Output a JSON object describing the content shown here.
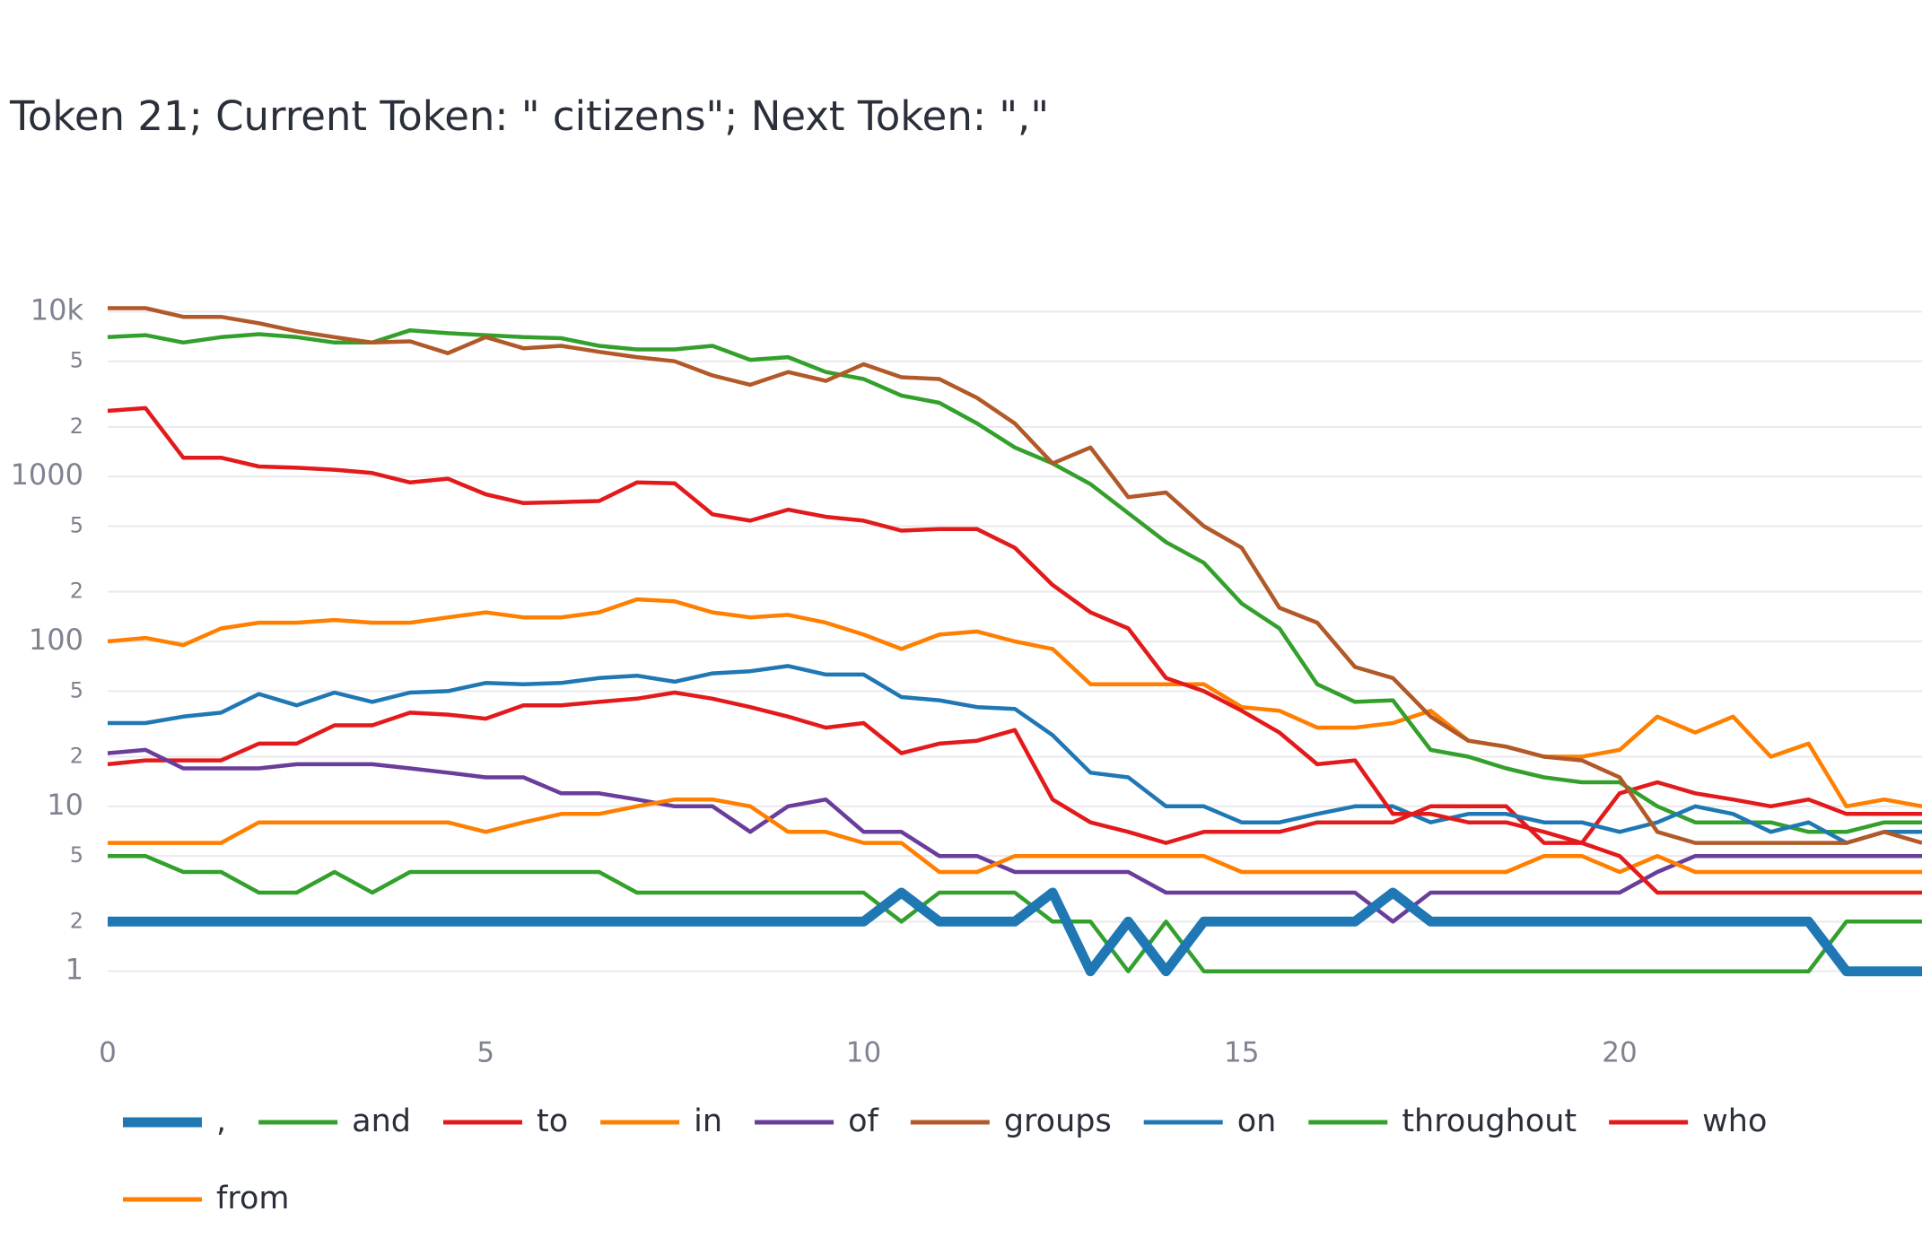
{
  "chart_data": {
    "type": "line",
    "title": "Token 21; Current Token: \" citizens\"; Next Token: \",\"",
    "yscale": "log",
    "grid": true,
    "xlim": [
      0,
      24
    ],
    "xticks": [
      0,
      5,
      10,
      15,
      20
    ],
    "ylim": [
      0.5,
      15000
    ],
    "yticks": [
      1,
      2,
      5,
      10,
      {
        "value": 20,
        "label": "2"
      },
      {
        "value": 50,
        "label": "5"
      },
      100,
      {
        "value": 200,
        "label": "2"
      },
      {
        "value": 500,
        "label": "5"
      },
      1000,
      {
        "value": 2000,
        "label": "2"
      },
      {
        "value": 5000,
        "label": "5"
      },
      {
        "value": 10000,
        "label": "10k"
      }
    ],
    "x": [
      0,
      0.5,
      1,
      1.5,
      2,
      2.5,
      3,
      3.5,
      4,
      4.5,
      5,
      5.5,
      6,
      6.5,
      7,
      7.5,
      8,
      8.5,
      9,
      9.5,
      10,
      10.5,
      11,
      11.5,
      12,
      12.5,
      13,
      13.5,
      14,
      14.5,
      15,
      15.5,
      16,
      16.5,
      17,
      17.5,
      18,
      18.5,
      19,
      19.5,
      20,
      20.5,
      21,
      21.5,
      22,
      22.5,
      23,
      23.5,
      24
    ],
    "series": [
      {
        "name": ",",
        "color": "#1f78b4",
        "values": [
          2,
          2,
          2,
          2,
          2,
          2,
          2,
          2,
          2,
          2,
          2,
          2,
          2,
          2,
          2,
          2,
          2,
          2,
          2,
          2,
          2,
          3,
          2,
          2,
          2,
          3,
          1,
          2,
          1,
          2,
          2,
          2,
          2,
          2,
          3,
          2,
          2,
          2,
          2,
          2,
          2,
          2,
          2,
          2,
          2,
          2,
          1,
          1,
          1
        ]
      },
      {
        "name": "and",
        "color": "#33a02c",
        "values": [
          5,
          5,
          4,
          4,
          3,
          3,
          4,
          3,
          4,
          4,
          4,
          4,
          4,
          4,
          3,
          3,
          3,
          3,
          3,
          3,
          3,
          2,
          3,
          3,
          3,
          2,
          2,
          1,
          2,
          1,
          1,
          1,
          1,
          1,
          1,
          1,
          1,
          1,
          1,
          1,
          1,
          1,
          1,
          1,
          1,
          1,
          2,
          2,
          2
        ]
      },
      {
        "name": "to",
        "color": "#e31a1c",
        "values": [
          2500,
          2600,
          1300,
          1300,
          1150,
          1130,
          1100,
          1050,
          920,
          970,
          780,
          690,
          700,
          710,
          920,
          910,
          590,
          540,
          630,
          570,
          540,
          470,
          480,
          480,
          370,
          220,
          150,
          120,
          60,
          50,
          38,
          28,
          18,
          19,
          9,
          9,
          8,
          8,
          7,
          6,
          5,
          3,
          3,
          3,
          3,
          3,
          3,
          3,
          3
        ]
      },
      {
        "name": "in",
        "color": "#ff7f00",
        "values": [
          6,
          6,
          6,
          6,
          8,
          8,
          8,
          8,
          8,
          8,
          7,
          8,
          9,
          9,
          10,
          11,
          11,
          10,
          7,
          7,
          6,
          6,
          4,
          4,
          5,
          5,
          5,
          5,
          5,
          5,
          4,
          4,
          4,
          4,
          4,
          4,
          4,
          4,
          5,
          5,
          4,
          5,
          4,
          4,
          4,
          4,
          4,
          4,
          4
        ]
      },
      {
        "name": "of",
        "color": "#6a3d9a",
        "values": [
          21,
          22,
          17,
          17,
          17,
          18,
          18,
          18,
          17,
          16,
          15,
          15,
          12,
          12,
          11,
          10,
          10,
          7,
          10,
          11,
          7,
          7,
          5,
          5,
          4,
          4,
          4,
          4,
          3,
          3,
          3,
          3,
          3,
          3,
          2,
          3,
          3,
          3,
          3,
          3,
          3,
          4,
          5,
          5,
          5,
          5,
          5,
          5,
          5
        ]
      },
      {
        "name": "groups",
        "color": "#b15928",
        "values": [
          10500,
          10500,
          9300,
          9300,
          8500,
          7600,
          7000,
          6500,
          6600,
          5600,
          7000,
          6000,
          6200,
          5700,
          5300,
          5000,
          4100,
          3600,
          4300,
          3800,
          4800,
          4000,
          3900,
          3000,
          2100,
          1200,
          1500,
          750,
          800,
          500,
          370,
          160,
          130,
          70,
          60,
          35,
          25,
          23,
          20,
          19,
          15,
          7,
          6,
          6,
          6,
          6,
          6,
          7,
          6
        ]
      },
      {
        "name": "on",
        "color": "#1f78b4",
        "values": [
          32,
          32,
          35,
          37,
          48,
          41,
          49,
          43,
          49,
          50,
          56,
          55,
          56,
          60,
          62,
          57,
          64,
          66,
          71,
          63,
          63,
          46,
          44,
          40,
          39,
          27,
          16,
          15,
          10,
          10,
          8,
          8,
          9,
          10,
          10,
          8,
          9,
          9,
          8,
          8,
          7,
          8,
          10,
          9,
          7,
          8,
          6,
          7,
          7
        ]
      },
      {
        "name": "throughout",
        "color": "#33a02c",
        "values": [
          7000,
          7200,
          6500,
          7000,
          7300,
          7000,
          6500,
          6500,
          7700,
          7400,
          7200,
          7000,
          6900,
          6200,
          5900,
          5900,
          6200,
          5100,
          5300,
          4300,
          3900,
          3100,
          2800,
          2100,
          1500,
          1200,
          900,
          600,
          400,
          300,
          170,
          120,
          55,
          43,
          44,
          22,
          20,
          17,
          15,
          14,
          14,
          10,
          8,
          8,
          8,
          7,
          7,
          8,
          8
        ]
      },
      {
        "name": "who",
        "color": "#e31a1c",
        "values": [
          18,
          19,
          19,
          19,
          24,
          24,
          31,
          31,
          37,
          36,
          34,
          41,
          41,
          43,
          45,
          49,
          45,
          40,
          35,
          30,
          32,
          21,
          24,
          25,
          29,
          11,
          8,
          7,
          6,
          7,
          7,
          7,
          8,
          8,
          8,
          10,
          10,
          10,
          6,
          6,
          12,
          14,
          12,
          11,
          10,
          11,
          9,
          9,
          9
        ]
      },
      {
        "name": "from",
        "color": "#ff7f00",
        "values": [
          100,
          105,
          95,
          120,
          130,
          130,
          135,
          130,
          130,
          140,
          150,
          140,
          140,
          150,
          180,
          175,
          150,
          140,
          145,
          130,
          110,
          90,
          110,
          115,
          100,
          90,
          55,
          55,
          55,
          55,
          40,
          38,
          30,
          30,
          32,
          38,
          25,
          23,
          20,
          20,
          22,
          35,
          28,
          35,
          20,
          24,
          10,
          11,
          10
        ]
      }
    ]
  }
}
